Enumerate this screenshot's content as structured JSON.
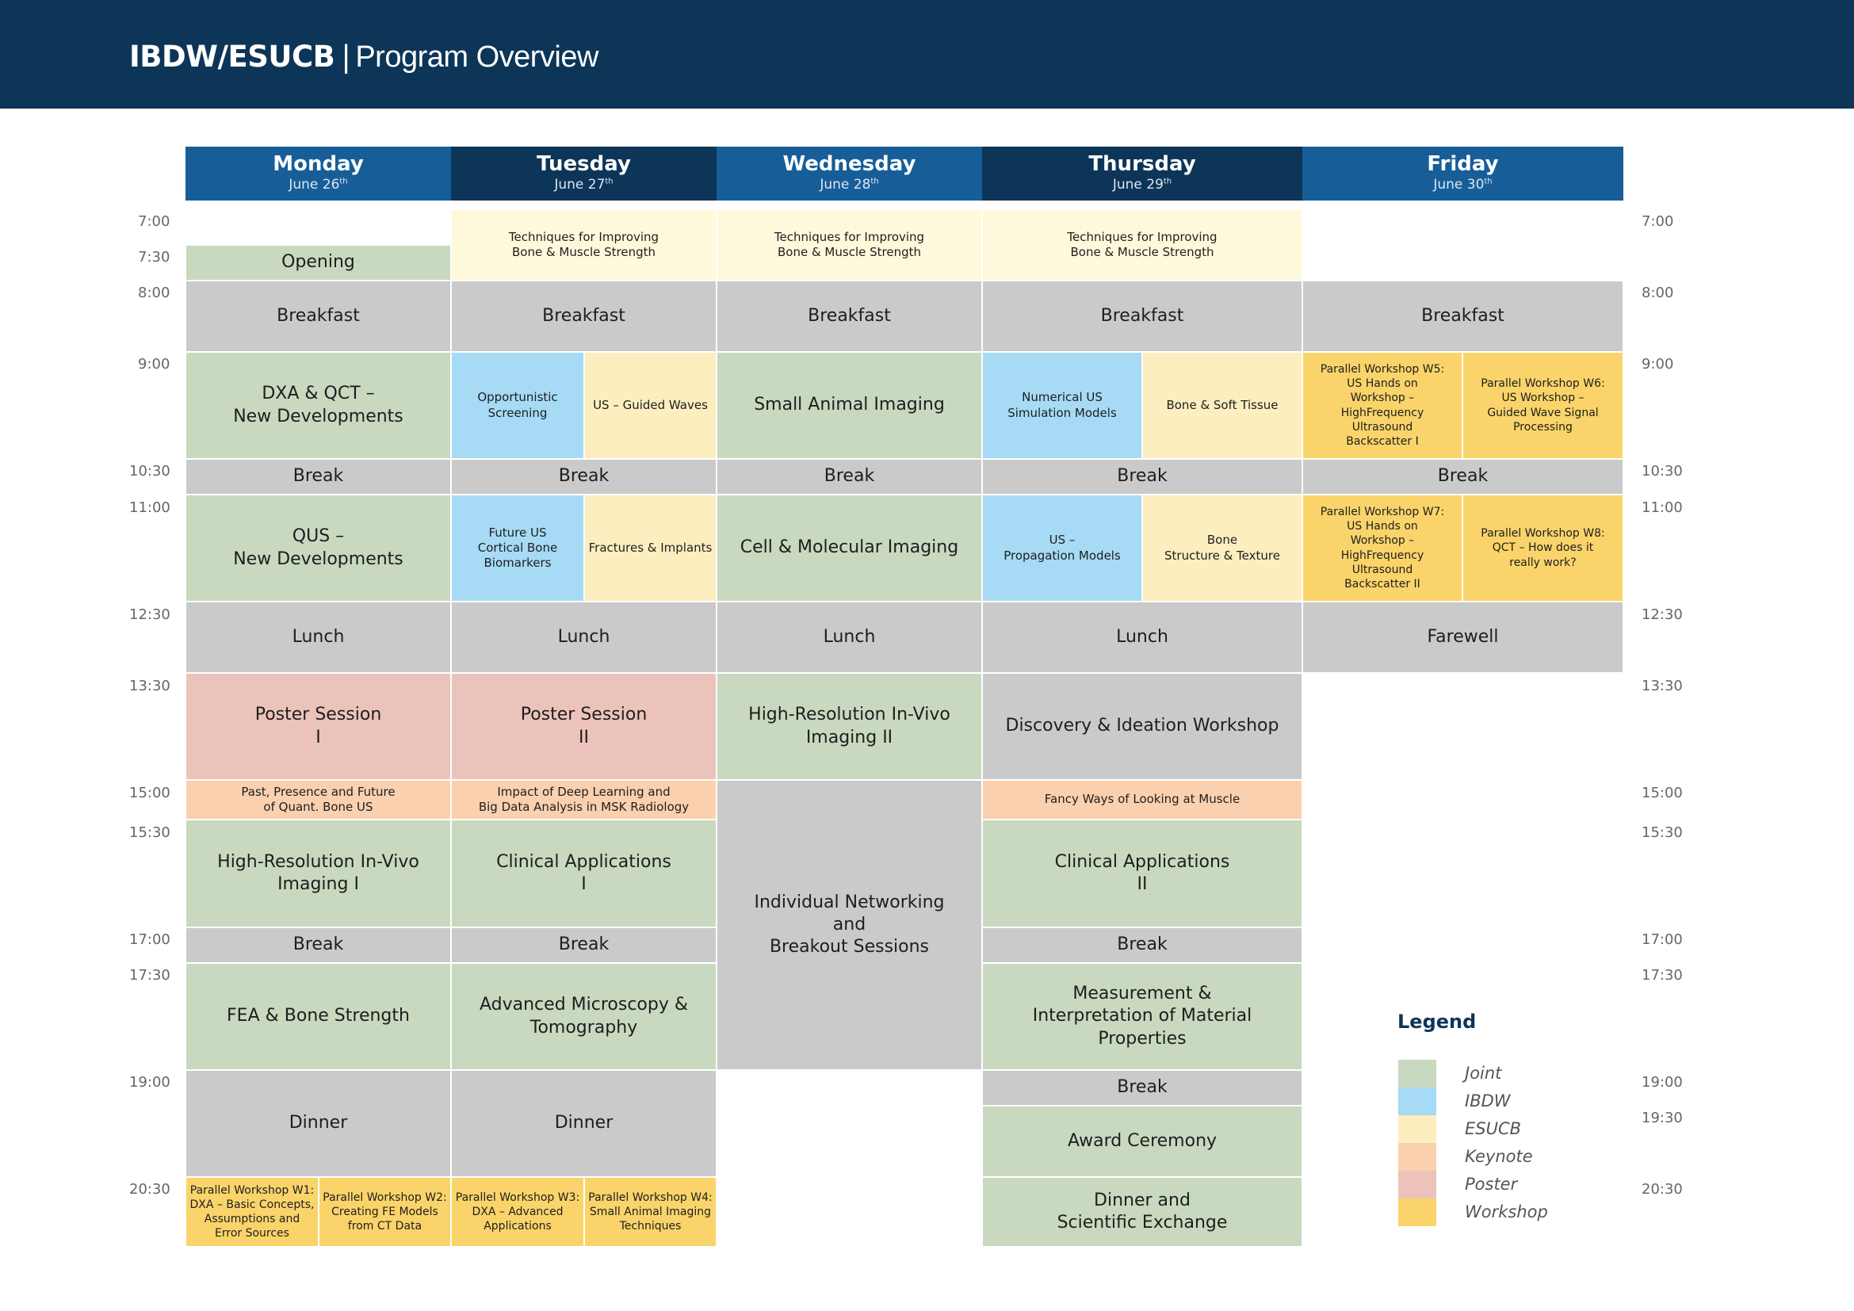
{
  "header": {
    "brand": "IBDW/ESUCB",
    "separator": "|",
    "title": "Program Overview"
  },
  "days": [
    {
      "name": "Monday",
      "date": "June 26",
      "suffix": "th",
      "color": "#175e99"
    },
    {
      "name": "Tuesday",
      "date": "June 27",
      "suffix": "th",
      "color": "#0d3558"
    },
    {
      "name": "Wednesday",
      "date": "June 28",
      "suffix": "th",
      "color": "#175e99"
    },
    {
      "name": "Thursday",
      "date": "June 29",
      "suffix": "th",
      "color": "#0d3558"
    },
    {
      "name": "Friday",
      "date": "June 30",
      "suffix": "th",
      "color": "#175e99"
    }
  ],
  "times_left": [
    "7:00",
    "7:30",
    "8:00",
    "9:00",
    "10:30",
    "11:00",
    "12:30",
    "13:30",
    "15:00",
    "15:30",
    "17:00",
    "17:30",
    "19:00",
    "20:30"
  ],
  "times_right": [
    "7:00",
    "8:00",
    "9:00",
    "10:30",
    "11:00",
    "12:30",
    "13:30",
    "15:00",
    "15:30",
    "17:00",
    "17:30",
    "19:00",
    "19:30",
    "20:30"
  ],
  "sessions": {
    "techniques_tue": "Techniques for Improving\nBone & Muscle Strength",
    "techniques_wed": "Techniques for Improving\nBone & Muscle Strength",
    "techniques_thu": "Techniques for Improving\nBone & Muscle Strength",
    "opening": "Opening",
    "breakfast_mon": "Breakfast",
    "breakfast_tue": "Breakfast",
    "breakfast_wed": "Breakfast",
    "breakfast_thu": "Breakfast",
    "breakfast_fri": "Breakfast",
    "dxa_qct": "DXA & QCT –\nNew Developments",
    "opportunistic": "Opportunistic\nScreening",
    "guided_waves": "US – Guided Waves",
    "small_animal": "Small Animal Imaging",
    "numerical_us": "Numerical US\nSimulation Models",
    "bone_soft": "Bone & Soft Tissue",
    "w5": "Parallel Workshop W5:\nUS Hands on\nWorkshop –\nHighFrequency\nUltrasound\nBackscatter I",
    "w6": "Parallel Workshop W6:\nUS Workshop –\nGuided Wave Signal\nProcessing",
    "break1_mon": "Break",
    "break1_tue": "Break",
    "break1_wed": "Break",
    "break1_thu": "Break",
    "break1_fri": "Break",
    "qus": "QUS –\nNew Developments",
    "future_us": "Future US\nCortical Bone\nBiomarkers",
    "fractures": "Fractures & Implants",
    "cell_mol": "Cell & Molecular Imaging",
    "us_prop": "US –\nPropagation Models",
    "bone_struct": "Bone\nStructure & Texture",
    "w7": "Parallel Workshop W7:\nUS Hands on\nWorkshop –\nHighFrequency\nUltrasound\nBackscatter II",
    "w8": "Parallel Workshop W8:\nQCT – How does it\nreally work?",
    "lunch_mon": "Lunch",
    "lunch_tue": "Lunch",
    "lunch_wed": "Lunch",
    "lunch_thu": "Lunch",
    "farewell": "Farewell",
    "poster1": "Poster Session\nI",
    "poster2": "Poster Session\nII",
    "hr2": "High-Resolution In-Vivo\nImaging II",
    "discovery": "Discovery & Ideation Workshop",
    "past_presence": "Past, Presence and Future\nof Quant. Bone US",
    "deep_learning": "Impact of Deep Learning and\nBig Data Analysis in MSK Radiology",
    "fancy": "Fancy Ways of Looking at Muscle",
    "hr1": "High-Resolution In-Vivo\nImaging I",
    "clinical1": "Clinical Applications\nI",
    "networking": "Individual Networking\nand\nBreakout Sessions",
    "clinical2": "Clinical Applications\nII",
    "break2_mon": "Break",
    "break2_tue": "Break",
    "break2_thu": "Break",
    "fea": "FEA & Bone Strength",
    "microscopy": "Advanced Microscopy &\nTomography",
    "measurement": "Measurement &\nInterpretation of Material Properties",
    "dinner_mon": "Dinner",
    "dinner_tue": "Dinner",
    "break3_thu": "Break",
    "award": "Award Ceremony",
    "dinner_exchange": "Dinner and\nScientific Exchange",
    "w1": "Parallel Workshop W1:\nDXA – Basic Concepts,\nAssumptions and\nError Sources",
    "w2": "Parallel Workshop W2:\nCreating FE Models\nfrom CT Data",
    "w3": "Parallel Workshop W3:\nDXA – Advanced\nApplications",
    "w4": "Parallel Workshop W4:\nSmall Animal Imaging\nTechniques"
  },
  "legend": {
    "title": "Legend",
    "items": [
      {
        "label": "Joint",
        "color": "#c8d9bf"
      },
      {
        "label": "IBDW",
        "color": "#a6daf5"
      },
      {
        "label": "ESUCB",
        "color": "#fdeec0"
      },
      {
        "label": "Keynote",
        "color": "#fbd0ae"
      },
      {
        "label": "Poster",
        "color": "#ecc3bb"
      },
      {
        "label": "Workshop",
        "color": "#fad46a"
      }
    ]
  }
}
